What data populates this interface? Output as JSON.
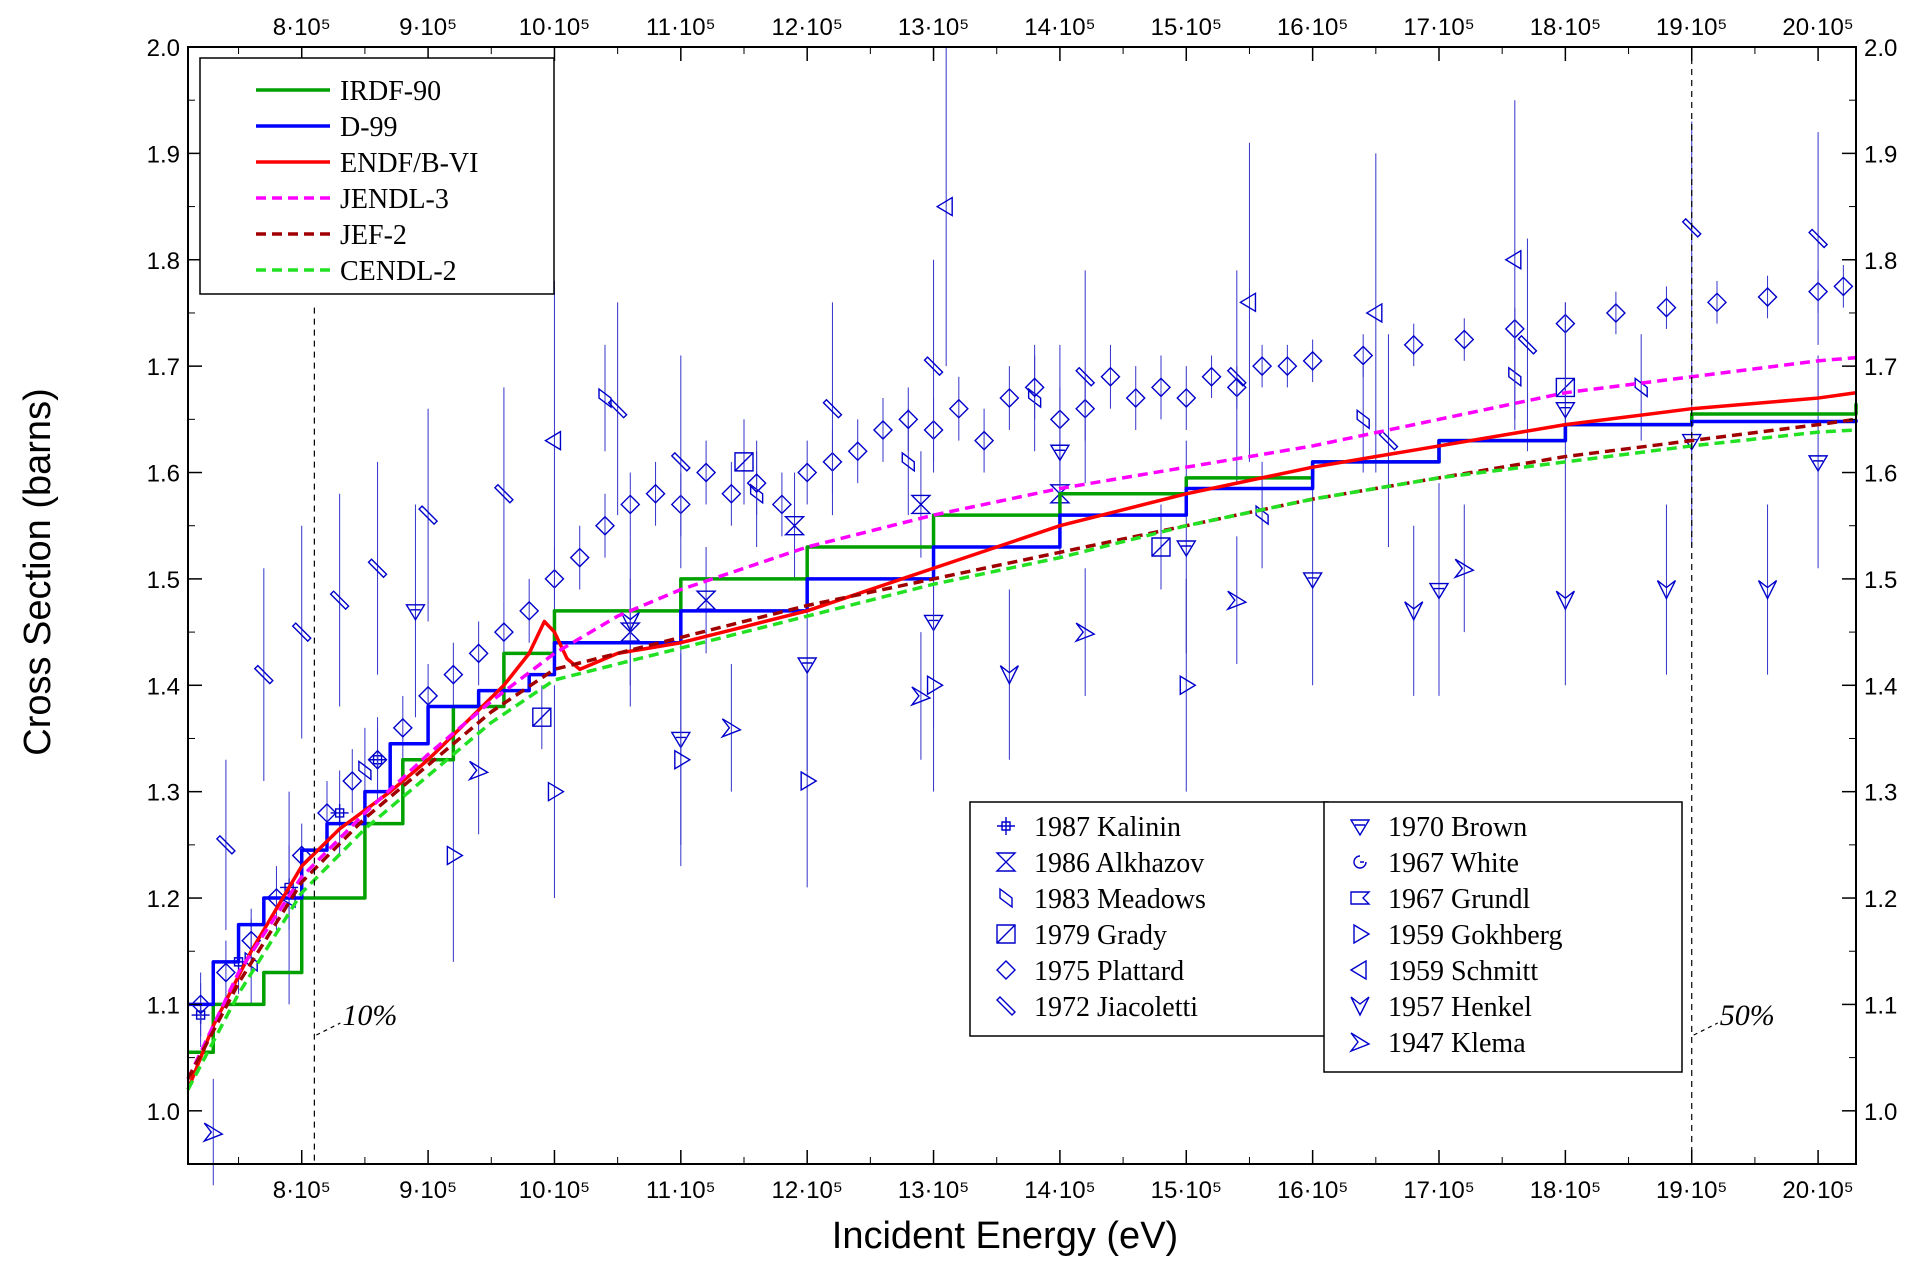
{
  "chart_data": {
    "type": "line",
    "title": "",
    "xlabel": "Incident Energy  (eV)",
    "ylabel": "Cross Section  (barns)",
    "xlim": [
      710000,
      2030000
    ],
    "ylim": [
      0.95,
      2.0
    ],
    "x_ticks": [
      800000,
      900000,
      1000000,
      1100000,
      1200000,
      1300000,
      1400000,
      1500000,
      1600000,
      1700000,
      1800000,
      1900000,
      2000000
    ],
    "x_tick_labels": [
      "8·10⁵",
      "9·10⁵",
      "10·10⁵",
      "11·10⁵",
      "12·10⁵",
      "13·10⁵",
      "14·10⁵",
      "15·10⁵",
      "16·10⁵",
      "17·10⁵",
      "18·10⁵",
      "19·10⁵",
      "20·10⁵"
    ],
    "y_ticks": [
      1.0,
      1.1,
      1.2,
      1.3,
      1.4,
      1.5,
      1.6,
      1.7,
      1.8,
      1.9,
      2.0
    ],
    "y_tick_labels": [
      "1.0",
      "1.1",
      "1.2",
      "1.3",
      "1.4",
      "1.5",
      "1.6",
      "1.7",
      "1.8",
      "1.9",
      "2.0"
    ],
    "grid": false,
    "legend_placement": "top-left",
    "series": [
      {
        "name": "IRDF-90",
        "color": "#00a000",
        "style": "solid",
        "step": true,
        "x": [
          710000,
          730000,
          770000,
          800000,
          850000,
          880000,
          920000,
          960000,
          1000000,
          1100000,
          1200000,
          1300000,
          1400000,
          1500000,
          1600000,
          1700000,
          1800000,
          1900000,
          2030000
        ],
        "y": [
          1.055,
          1.1,
          1.13,
          1.2,
          1.27,
          1.33,
          1.38,
          1.43,
          1.47,
          1.5,
          1.53,
          1.56,
          1.58,
          1.595,
          1.61,
          1.63,
          1.645,
          1.655,
          1.665
        ]
      },
      {
        "name": "D-99",
        "color": "#0000ff",
        "style": "solid",
        "step": true,
        "x": [
          710000,
          730000,
          750000,
          770000,
          800000,
          820000,
          850000,
          870000,
          900000,
          940000,
          980000,
          1000000,
          1100000,
          1200000,
          1300000,
          1400000,
          1500000,
          1600000,
          1700000,
          1800000,
          1900000,
          2030000
        ],
        "y": [
          1.1,
          1.14,
          1.175,
          1.2,
          1.245,
          1.27,
          1.3,
          1.345,
          1.38,
          1.395,
          1.41,
          1.44,
          1.47,
          1.5,
          1.53,
          1.56,
          1.585,
          1.61,
          1.63,
          1.645,
          1.648,
          1.65
        ]
      },
      {
        "name": "ENDF/B-VI",
        "color": "#ff0000",
        "style": "solid",
        "x": [
          710000,
          730000,
          760000,
          800000,
          830000,
          870000,
          900000,
          930000,
          960000,
          980000,
          992000,
          1000000,
          1010000,
          1020000,
          1050000,
          1100000,
          1150000,
          1200000,
          1250000,
          1300000,
          1350000,
          1400000,
          1500000,
          1600000,
          1700000,
          1800000,
          1900000,
          2000000,
          2030000
        ],
        "y": [
          1.02,
          1.08,
          1.15,
          1.23,
          1.265,
          1.3,
          1.33,
          1.365,
          1.4,
          1.43,
          1.46,
          1.45,
          1.425,
          1.415,
          1.43,
          1.44,
          1.455,
          1.47,
          1.49,
          1.51,
          1.53,
          1.55,
          1.58,
          1.605,
          1.625,
          1.645,
          1.66,
          1.67,
          1.675
        ]
      },
      {
        "name": "JENDL-3",
        "color": "#ff00ff",
        "style": "dash",
        "x": [
          710000,
          750000,
          800000,
          850000,
          900000,
          950000,
          1000000,
          1050000,
          1100000,
          1200000,
          1300000,
          1400000,
          1500000,
          1600000,
          1700000,
          1800000,
          1900000,
          2000000,
          2030000
        ],
        "y": [
          1.03,
          1.13,
          1.22,
          1.28,
          1.335,
          1.385,
          1.43,
          1.465,
          1.49,
          1.53,
          1.56,
          1.585,
          1.605,
          1.625,
          1.65,
          1.675,
          1.69,
          1.705,
          1.708
        ]
      },
      {
        "name": "JEF-2",
        "color": "#a00000",
        "style": "dash",
        "x": [
          710000,
          750000,
          800000,
          850000,
          900000,
          950000,
          1000000,
          1050000,
          1100000,
          1200000,
          1300000,
          1400000,
          1500000,
          1600000,
          1700000,
          1800000,
          1900000,
          2000000,
          2030000
        ],
        "y": [
          1.03,
          1.12,
          1.215,
          1.275,
          1.325,
          1.375,
          1.415,
          1.43,
          1.445,
          1.475,
          1.5,
          1.525,
          1.55,
          1.575,
          1.595,
          1.615,
          1.63,
          1.645,
          1.65
        ]
      },
      {
        "name": "CENDL-2",
        "color": "#22e022",
        "style": "dash",
        "x": [
          710000,
          750000,
          800000,
          850000,
          900000,
          950000,
          1000000,
          1050000,
          1100000,
          1200000,
          1300000,
          1400000,
          1500000,
          1600000,
          1700000,
          1800000,
          1900000,
          2000000,
          2030000
        ],
        "y": [
          1.02,
          1.11,
          1.205,
          1.265,
          1.315,
          1.365,
          1.405,
          1.42,
          1.435,
          1.465,
          1.495,
          1.52,
          1.55,
          1.575,
          1.595,
          1.61,
          1.625,
          1.638,
          1.64
        ]
      }
    ],
    "experimental": [
      {
        "name": "1987 Kalinin",
        "marker": "plus",
        "x": [
          720000,
          750000,
          790000,
          830000,
          860000
        ],
        "y": [
          1.09,
          1.14,
          1.21,
          1.28,
          1.33
        ],
        "err": [
          0.03,
          0.03,
          0.04,
          0.04,
          0.04
        ]
      },
      {
        "name": "1986 Alkhazov",
        "marker": "hourglass",
        "x": [
          1060000,
          1120000,
          1190000,
          1290000,
          1400000
        ],
        "y": [
          1.45,
          1.48,
          1.55,
          1.57,
          1.58
        ],
        "err": [
          0.05,
          0.05,
          0.05,
          0.05,
          0.05
        ]
      },
      {
        "name": "1983 Meadows",
        "marker": "slant",
        "x": [
          760000,
          850000,
          1040000,
          1160000,
          1280000,
          1380000,
          1560000,
          1640000,
          1760000,
          1860000
        ],
        "y": [
          1.14,
          1.32,
          1.67,
          1.58,
          1.61,
          1.67,
          1.56,
          1.65,
          1.69,
          1.68
        ],
        "err": [
          0.04,
          0.04,
          0.05,
          0.05,
          0.05,
          0.05,
          0.05,
          0.05,
          0.05,
          0.05
        ]
      },
      {
        "name": "1979 Grady",
        "marker": "boxslash",
        "x": [
          990000,
          1150000,
          1480000,
          1800000
        ],
        "y": [
          1.37,
          1.61,
          1.53,
          1.68
        ],
        "err": [
          0.03,
          0.04,
          0.04,
          0.04
        ]
      },
      {
        "name": "1975 Plattard",
        "marker": "diamond",
        "x": [
          720000,
          740000,
          760000,
          780000,
          800000,
          820000,
          840000,
          860000,
          880000,
          900000,
          920000,
          940000,
          960000,
          980000,
          1000000,
          1020000,
          1040000,
          1060000,
          1080000,
          1100000,
          1120000,
          1140000,
          1160000,
          1180000,
          1200000,
          1220000,
          1240000,
          1260000,
          1280000,
          1300000,
          1320000,
          1340000,
          1360000,
          1380000,
          1400000,
          1420000,
          1440000,
          1460000,
          1480000,
          1500000,
          1520000,
          1540000,
          1560000,
          1580000,
          1600000,
          1640000,
          1680000,
          1720000,
          1760000,
          1800000,
          1840000,
          1880000,
          1920000,
          1960000,
          2000000,
          2020000
        ],
        "y": [
          1.1,
          1.13,
          1.16,
          1.2,
          1.24,
          1.28,
          1.31,
          1.33,
          1.36,
          1.39,
          1.41,
          1.43,
          1.45,
          1.47,
          1.5,
          1.52,
          1.55,
          1.57,
          1.58,
          1.57,
          1.6,
          1.58,
          1.59,
          1.57,
          1.6,
          1.61,
          1.62,
          1.64,
          1.65,
          1.64,
          1.66,
          1.63,
          1.67,
          1.68,
          1.65,
          1.66,
          1.69,
          1.67,
          1.68,
          1.67,
          1.69,
          1.68,
          1.7,
          1.7,
          1.705,
          1.71,
          1.72,
          1.725,
          1.735,
          1.74,
          1.75,
          1.755,
          1.76,
          1.765,
          1.77,
          1.775
        ],
        "err": [
          0.03,
          0.03,
          0.03,
          0.03,
          0.03,
          0.03,
          0.03,
          0.03,
          0.03,
          0.03,
          0.03,
          0.03,
          0.03,
          0.03,
          0.03,
          0.03,
          0.03,
          0.03,
          0.03,
          0.03,
          0.03,
          0.03,
          0.03,
          0.03,
          0.03,
          0.03,
          0.03,
          0.03,
          0.03,
          0.03,
          0.03,
          0.03,
          0.03,
          0.03,
          0.03,
          0.03,
          0.03,
          0.03,
          0.03,
          0.03,
          0.02,
          0.02,
          0.02,
          0.02,
          0.02,
          0.02,
          0.02,
          0.02,
          0.02,
          0.02,
          0.02,
          0.02,
          0.02,
          0.02,
          0.02,
          0.02
        ]
      },
      {
        "name": "1972 Jiacoletti",
        "marker": "backslash",
        "x": [
          740000,
          770000,
          800000,
          830000,
          860000,
          900000,
          960000,
          1050000,
          1100000,
          1220000,
          1300000,
          1420000,
          1540000,
          1660000,
          1770000,
          1900000,
          2000000
        ],
        "y": [
          1.25,
          1.41,
          1.45,
          1.48,
          1.51,
          1.56,
          1.58,
          1.66,
          1.61,
          1.66,
          1.7,
          1.69,
          1.69,
          1.63,
          1.72,
          1.83,
          1.82
        ],
        "err": [
          0.08,
          0.1,
          0.1,
          0.1,
          0.1,
          0.1,
          0.1,
          0.1,
          0.1,
          0.1,
          0.1,
          0.1,
          0.1,
          0.1,
          0.1,
          0.1,
          0.1
        ]
      },
      {
        "name": "1970 Brown",
        "marker": "tri-down",
        "x": [
          890000,
          1100000,
          1200000,
          1300000,
          1400000,
          1500000,
          1600000,
          1700000,
          1800000,
          1900000,
          2000000
        ],
        "y": [
          1.47,
          1.35,
          1.42,
          1.46,
          1.62,
          1.53,
          1.5,
          1.49,
          1.66,
          1.63,
          1.61
        ],
        "err": [
          0.1,
          0.1,
          0.1,
          0.1,
          0.1,
          0.1,
          0.1,
          0.1,
          0.1,
          0.1,
          0.1
        ]
      },
      {
        "name": "1967 White",
        "marker": "swirl",
        "x": [],
        "y": [],
        "err": []
      },
      {
        "name": "1967 Grundl",
        "marker": "box-notch",
        "x": [],
        "y": [],
        "err": []
      },
      {
        "name": "1959 Gokhberg",
        "marker": "tri-right",
        "x": [
          920000,
          1000000,
          1100000,
          1200000,
          1300000,
          1500000
        ],
        "y": [
          1.24,
          1.3,
          1.33,
          1.31,
          1.4,
          1.4
        ],
        "err": [
          0.1,
          0.1,
          0.1,
          0.1,
          0.1,
          0.1
        ]
      },
      {
        "name": "1959 Schmitt",
        "marker": "tri-left",
        "x": [
          790000,
          1000000,
          1310000,
          1550000,
          1650000,
          1760000
        ],
        "y": [
          1.2,
          1.63,
          1.85,
          1.76,
          1.75,
          1.8
        ],
        "err": [
          0.1,
          0.15,
          0.15,
          0.15,
          0.15,
          0.15
        ]
      },
      {
        "name": "1957 Henkel",
        "marker": "tri-down-open",
        "x": [
          1060000,
          1360000,
          1680000,
          1800000,
          1880000,
          1960000
        ],
        "y": [
          1.46,
          1.41,
          1.47,
          1.48,
          1.49,
          1.49
        ],
        "err": [
          0.08,
          0.08,
          0.08,
          0.08,
          0.08,
          0.08
        ]
      },
      {
        "name": "1947 Klema",
        "marker": "tri-right-open",
        "x": [
          730000,
          940000,
          1140000,
          1290000,
          1420000,
          1540000,
          1720000
        ],
        "y": [
          0.98,
          1.32,
          1.36,
          1.39,
          1.45,
          1.48,
          1.51
        ],
        "err": [
          0.05,
          0.06,
          0.06,
          0.06,
          0.06,
          0.06,
          0.06
        ]
      }
    ],
    "annotations": [
      {
        "text": "10%",
        "x": 810000
      },
      {
        "text": "50%",
        "x": 1900000
      }
    ]
  }
}
